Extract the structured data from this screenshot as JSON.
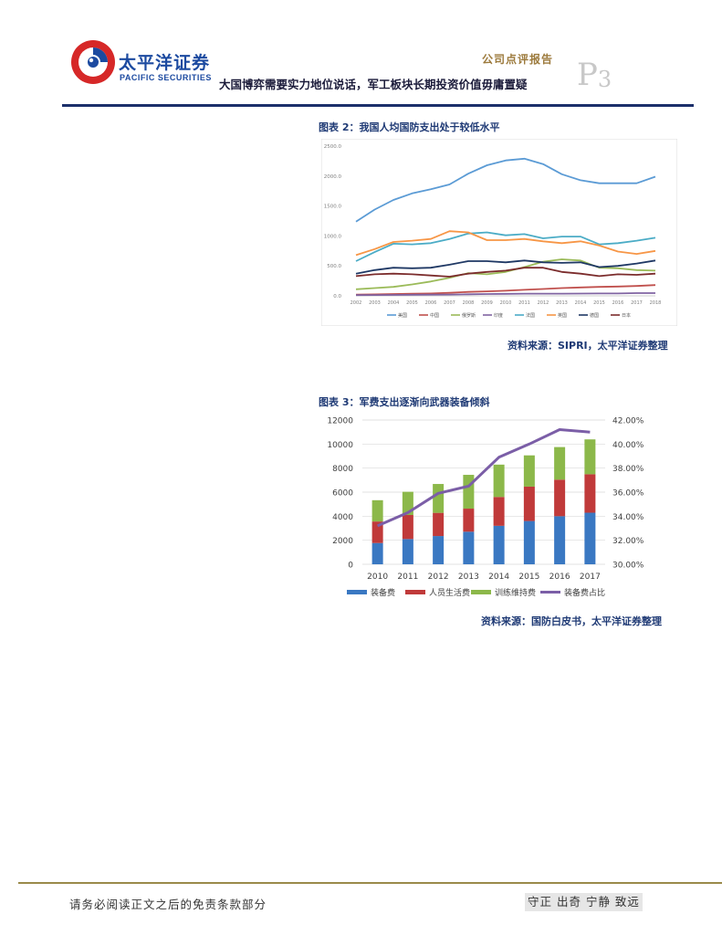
{
  "header": {
    "brand_cn": "太平洋证券",
    "brand_en": "PACIFIC SECURITIES",
    "report_type": "公司点评报告",
    "title": "大国博弈需要实力地位说话，军工板块长期投资价值毋庸置疑",
    "page_letter": "P",
    "page_number": "3"
  },
  "figures": {
    "fig2_caption": "图表 2：我国人均国防支出处于较低水平",
    "fig2_source": "资料来源：SIPRI，太平洋证券整理",
    "fig3_caption": "图表 3：军费支出逐渐向武器装备倾斜",
    "fig3_source": "资料来源：国防白皮书，太平洋证券整理"
  },
  "chart_data": [
    {
      "type": "line",
      "x": [
        "2002",
        "2003",
        "2004",
        "2005",
        "2006",
        "2007",
        "2008",
        "2009",
        "2010",
        "2011",
        "2012",
        "2013",
        "2014",
        "2015",
        "2016",
        "2017",
        "2018"
      ],
      "ylim": [
        0,
        2500
      ],
      "yticks": [
        "0.0",
        "500.0",
        "1000.0",
        "1500.0",
        "2000.0",
        "2500.0"
      ],
      "legend_position": "bottom",
      "grid": false,
      "series": [
        {
          "name": "美国",
          "color": "#5b9bd5",
          "values": [
            1240,
            1440,
            1600,
            1710,
            1780,
            1860,
            2040,
            2180,
            2260,
            2290,
            2200,
            2030,
            1930,
            1880,
            1880,
            1880,
            1990
          ]
        },
        {
          "name": "中国",
          "color": "#c0504d",
          "values": [
            20,
            25,
            30,
            35,
            40,
            50,
            65,
            75,
            85,
            100,
            115,
            130,
            140,
            150,
            155,
            165,
            180
          ]
        },
        {
          "name": "俄罗斯",
          "color": "#9bbb59",
          "values": [
            110,
            130,
            150,
            190,
            240,
            300,
            380,
            360,
            400,
            480,
            570,
            610,
            590,
            470,
            460,
            430,
            420
          ]
        },
        {
          "name": "印度",
          "color": "#8064a2",
          "values": [
            12,
            14,
            16,
            18,
            20,
            22,
            26,
            30,
            33,
            36,
            37,
            37,
            38,
            39,
            40,
            45,
            45
          ]
        },
        {
          "name": "法国",
          "color": "#4bacc6",
          "values": [
            580,
            730,
            870,
            860,
            880,
            950,
            1040,
            1060,
            1010,
            1030,
            960,
            990,
            990,
            860,
            880,
            920,
            970
          ]
        },
        {
          "name": "英国",
          "color": "#f79646",
          "values": [
            680,
            780,
            900,
            920,
            950,
            1080,
            1060,
            930,
            930,
            950,
            910,
            880,
            910,
            840,
            740,
            700,
            750
          ]
        },
        {
          "name": "德国",
          "color": "#1f3864",
          "values": [
            370,
            430,
            470,
            460,
            470,
            520,
            580,
            580,
            560,
            590,
            560,
            550,
            560,
            480,
            500,
            540,
            590
          ]
        },
        {
          "name": "日本",
          "color": "#7b2c2c",
          "values": [
            330,
            360,
            370,
            360,
            340,
            320,
            370,
            400,
            420,
            470,
            470,
            400,
            370,
            330,
            360,
            350,
            370
          ]
        }
      ]
    },
    {
      "type": "bar",
      "stacked": true,
      "categories": [
        "2010",
        "2011",
        "2012",
        "2013",
        "2014",
        "2015",
        "2016",
        "2017"
      ],
      "ylim": [
        0,
        12000
      ],
      "yticks": [
        "0",
        "2000",
        "4000",
        "6000",
        "8000",
        "10000",
        "12000"
      ],
      "y2lim": [
        30,
        42
      ],
      "y2ticks": [
        "30.00%",
        "32.00%",
        "34.00%",
        "36.00%",
        "38.00%",
        "40.00%",
        "42.00%"
      ],
      "legend_position": "bottom",
      "grid": true,
      "series": [
        {
          "name": "装备费",
          "color": "#3a78c2",
          "values": [
            1770,
            2100,
            2350,
            2710,
            3200,
            3600,
            4000,
            4290
          ]
        },
        {
          "name": "人员生活费",
          "color": "#c03a3a",
          "values": [
            1790,
            2000,
            1930,
            1920,
            2400,
            2860,
            3040,
            3200
          ]
        },
        {
          "name": "训练维持费",
          "color": "#8cb84a",
          "values": [
            1770,
            1930,
            2400,
            2810,
            2690,
            2600,
            2710,
            2900
          ]
        }
      ],
      "line_series": {
        "name": "装备费占比",
        "color": "#7b5ea7",
        "axis": "secondary",
        "values": [
          33.2,
          34.3,
          35.9,
          36.5,
          38.9,
          40.0,
          41.2,
          41.0
        ]
      }
    }
  ],
  "footer": {
    "disclaimer": "请务必阅读正文之后的免责条款部分",
    "motto": "守正 出奇 宁静 致远"
  }
}
